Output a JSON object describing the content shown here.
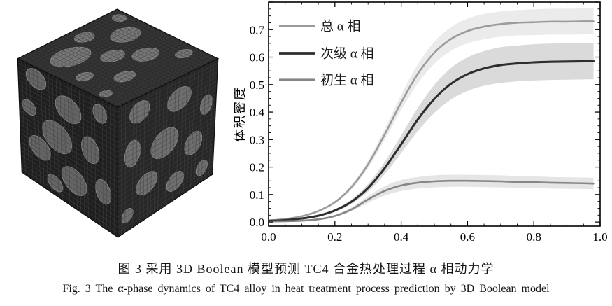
{
  "captions": {
    "zh": "图 3  采用 3D Boolean 模型预测 TC4 合金热处理过程 α 相动力学",
    "en": "Fig. 3  The α-phase dynamics of TC4 alloy in heat treatment process prediction by 3D Boolean model"
  },
  "chart_data": {
    "type": "line",
    "title": "",
    "xlabel": "",
    "ylabel": "体积密度",
    "xlim": [
      0.0,
      1.0
    ],
    "ylim": [
      -0.015,
      0.8
    ],
    "x_ticks": [
      0.0,
      0.2,
      0.4,
      0.6,
      0.8,
      1.0
    ],
    "y_ticks": [
      0.0,
      0.1,
      0.2,
      0.3,
      0.4,
      0.5,
      0.6,
      0.7
    ],
    "x_minor_step": 0.05,
    "y_minor_step": 0.025,
    "grid": false,
    "legend_position": "top-left",
    "x": [
      0,
      0.05,
      0.1,
      0.15,
      0.2,
      0.25,
      0.3,
      0.35,
      0.4,
      0.45,
      0.5,
      0.55,
      0.6,
      0.65,
      0.7,
      0.75,
      0.8,
      0.85,
      0.9,
      0.95,
      0.98
    ],
    "series": [
      {
        "name": "总 α 相",
        "line_color": "#9b9b9b",
        "band_color": "#e6e6e6",
        "band_opacity": 0.8,
        "line_width": 2.6,
        "values": [
          0.006,
          0.011,
          0.021,
          0.04,
          0.072,
          0.127,
          0.21,
          0.318,
          0.435,
          0.539,
          0.616,
          0.666,
          0.695,
          0.711,
          0.72,
          0.725,
          0.727,
          0.729,
          0.729,
          0.73,
          0.73
        ],
        "upper": [
          0.006,
          0.012,
          0.022,
          0.043,
          0.077,
          0.135,
          0.223,
          0.338,
          0.463,
          0.574,
          0.656,
          0.709,
          0.74,
          0.757,
          0.766,
          0.771,
          0.774,
          0.776,
          0.776,
          0.777,
          0.777
        ],
        "lower": [
          0.006,
          0.01,
          0.02,
          0.037,
          0.067,
          0.119,
          0.197,
          0.298,
          0.407,
          0.504,
          0.576,
          0.623,
          0.65,
          0.665,
          0.674,
          0.679,
          0.68,
          0.682,
          0.682,
          0.683,
          0.683
        ]
      },
      {
        "name": "次级 α 相",
        "line_color": "#2e2e2e",
        "band_color": "#d4d4d4",
        "band_opacity": 0.85,
        "line_width": 3.1,
        "values": [
          0.004,
          0.007,
          0.013,
          0.023,
          0.042,
          0.074,
          0.124,
          0.196,
          0.283,
          0.373,
          0.448,
          0.503,
          0.538,
          0.559,
          0.571,
          0.577,
          0.581,
          0.583,
          0.584,
          0.585,
          0.585
        ],
        "upper": [
          0.004,
          0.008,
          0.014,
          0.026,
          0.047,
          0.082,
          0.138,
          0.218,
          0.315,
          0.415,
          0.499,
          0.56,
          0.599,
          0.622,
          0.636,
          0.642,
          0.647,
          0.649,
          0.65,
          0.651,
          0.651
        ],
        "lower": [
          0.004,
          0.006,
          0.012,
          0.02,
          0.037,
          0.066,
          0.11,
          0.174,
          0.251,
          0.331,
          0.397,
          0.446,
          0.477,
          0.496,
          0.506,
          0.512,
          0.515,
          0.517,
          0.518,
          0.519,
          0.519
        ]
      },
      {
        "name": "初生 α 相",
        "line_color": "#868686",
        "band_color": "#dedede",
        "band_opacity": 0.8,
        "line_width": 2.6,
        "values": [
          0.002,
          0.003,
          0.005,
          0.01,
          0.022,
          0.046,
          0.082,
          0.113,
          0.133,
          0.143,
          0.148,
          0.15,
          0.15,
          0.149,
          0.148,
          0.146,
          0.145,
          0.143,
          0.142,
          0.141,
          0.14
        ],
        "upper": [
          0.002,
          0.003,
          0.006,
          0.011,
          0.025,
          0.053,
          0.094,
          0.13,
          0.153,
          0.164,
          0.17,
          0.172,
          0.172,
          0.171,
          0.17,
          0.167,
          0.166,
          0.164,
          0.163,
          0.162,
          0.161
        ],
        "lower": [
          0.002,
          0.003,
          0.004,
          0.009,
          0.019,
          0.039,
          0.07,
          0.096,
          0.113,
          0.122,
          0.126,
          0.128,
          0.128,
          0.127,
          0.126,
          0.125,
          0.124,
          0.122,
          0.121,
          0.12,
          0.119
        ]
      }
    ]
  },
  "cube": {
    "label": "3D Boolean model microstructure cube render",
    "edge_color": "#0f0f0f",
    "grid_color": "#434343",
    "faces": {
      "top": {
        "fill": "#2e2e2e",
        "blob_fill": "#767676"
      },
      "left": {
        "fill": "#1f1f1f",
        "blob_fill": "#646464"
      },
      "right": {
        "fill": "#272727",
        "blob_fill": "#6e6e6e"
      }
    },
    "blobs": {
      "top": [
        {
          "u": 0.28,
          "v": 0.25,
          "rx": 0.17,
          "ry": 0.11
        },
        {
          "u": 0.55,
          "v": 0.12,
          "rx": 0.08,
          "ry": 0.06
        },
        {
          "u": 0.78,
          "v": 0.3,
          "rx": 0.12,
          "ry": 0.09
        },
        {
          "u": 0.5,
          "v": 0.45,
          "rx": 0.1,
          "ry": 0.07
        },
        {
          "u": 0.15,
          "v": 0.52,
          "rx": 0.07,
          "ry": 0.05
        },
        {
          "u": 0.68,
          "v": 0.6,
          "rx": 0.11,
          "ry": 0.08
        },
        {
          "u": 0.35,
          "v": 0.72,
          "rx": 0.09,
          "ry": 0.06
        },
        {
          "u": 0.88,
          "v": 0.78,
          "rx": 0.07,
          "ry": 0.05
        },
        {
          "u": 0.08,
          "v": 0.8,
          "rx": 0.05,
          "ry": 0.04
        },
        {
          "u": 0.92,
          "v": 0.1,
          "rx": 0.05,
          "ry": 0.05
        }
      ],
      "left": [
        {
          "u": 0.18,
          "v": 0.1,
          "rx": 0.1,
          "ry": 0.08
        },
        {
          "u": 0.5,
          "v": 0.22,
          "rx": 0.13,
          "ry": 0.1
        },
        {
          "u": 0.82,
          "v": 0.12,
          "rx": 0.07,
          "ry": 0.07
        },
        {
          "u": 0.1,
          "v": 0.38,
          "rx": 0.07,
          "ry": 0.06
        },
        {
          "u": 0.38,
          "v": 0.5,
          "rx": 0.15,
          "ry": 0.12
        },
        {
          "u": 0.72,
          "v": 0.45,
          "rx": 0.09,
          "ry": 0.1
        },
        {
          "u": 0.2,
          "v": 0.68,
          "rx": 0.11,
          "ry": 0.09
        },
        {
          "u": 0.55,
          "v": 0.78,
          "rx": 0.13,
          "ry": 0.1
        },
        {
          "u": 0.85,
          "v": 0.72,
          "rx": 0.08,
          "ry": 0.09
        },
        {
          "u": 0.35,
          "v": 0.9,
          "rx": 0.08,
          "ry": 0.06
        }
      ],
      "right": [
        {
          "u": 0.22,
          "v": 0.12,
          "rx": 0.1,
          "ry": 0.08
        },
        {
          "u": 0.62,
          "v": 0.18,
          "rx": 0.12,
          "ry": 0.09
        },
        {
          "u": 0.9,
          "v": 0.35,
          "rx": 0.06,
          "ry": 0.08
        },
        {
          "u": 0.15,
          "v": 0.42,
          "rx": 0.08,
          "ry": 0.1
        },
        {
          "u": 0.48,
          "v": 0.48,
          "rx": 0.14,
          "ry": 0.11
        },
        {
          "u": 0.78,
          "v": 0.62,
          "rx": 0.09,
          "ry": 0.09
        },
        {
          "u": 0.3,
          "v": 0.72,
          "rx": 0.11,
          "ry": 0.08
        },
        {
          "u": 0.6,
          "v": 0.85,
          "rx": 0.09,
          "ry": 0.07
        },
        {
          "u": 0.1,
          "v": 0.88,
          "rx": 0.06,
          "ry": 0.05
        },
        {
          "u": 0.88,
          "v": 0.88,
          "rx": 0.06,
          "ry": 0.06
        }
      ]
    }
  }
}
